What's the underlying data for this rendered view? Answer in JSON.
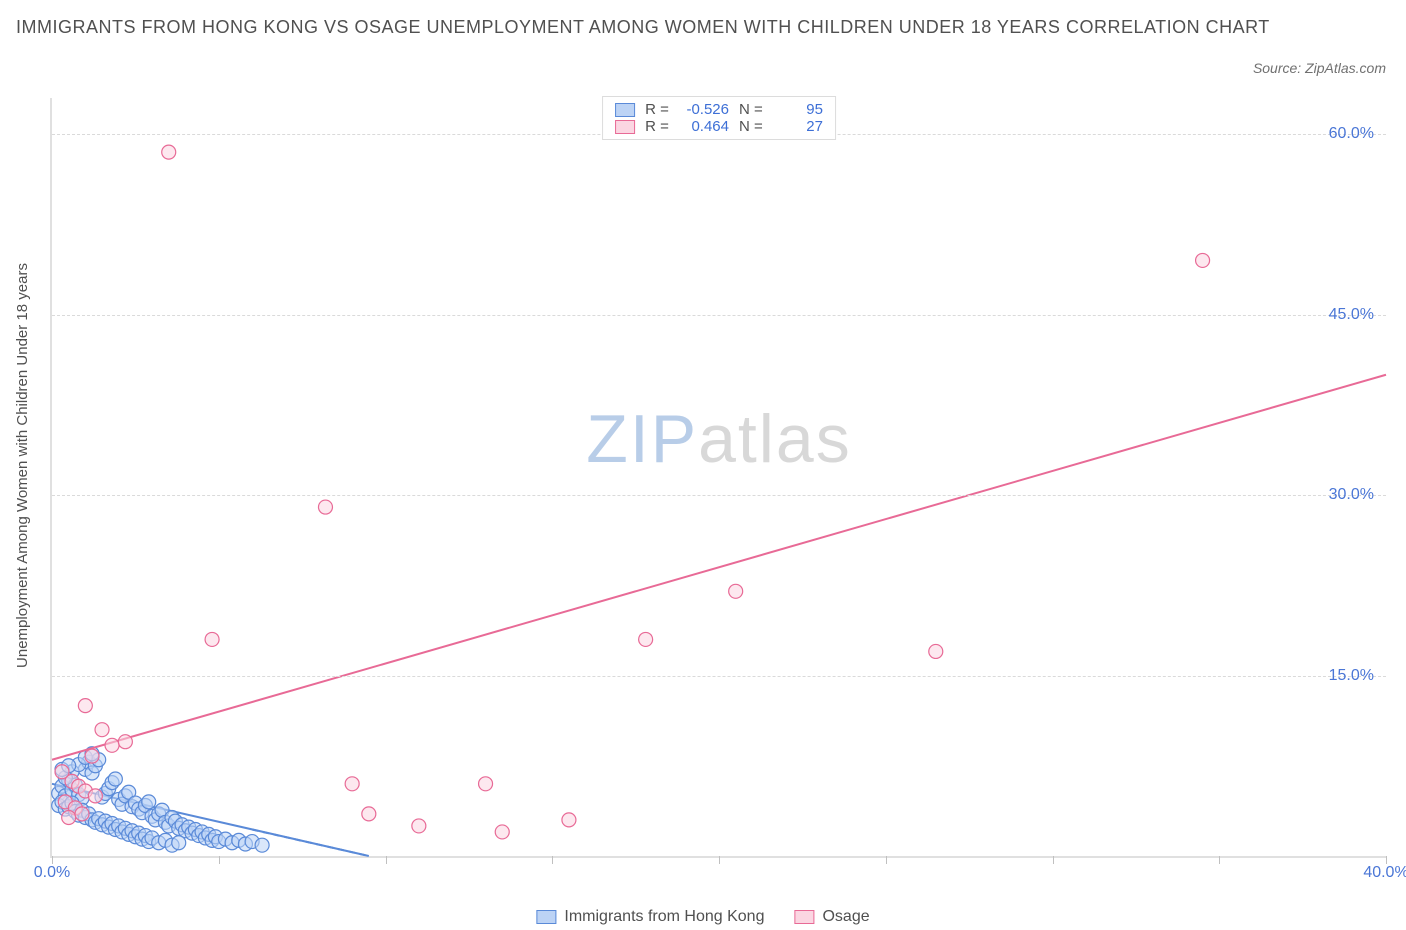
{
  "title": "IMMIGRANTS FROM HONG KONG VS OSAGE UNEMPLOYMENT AMONG WOMEN WITH CHILDREN UNDER 18 YEARS CORRELATION CHART",
  "source": "Source: ZipAtlas.com",
  "ylabel": "Unemployment Among Women with Children Under 18 years",
  "watermark_a": "ZIP",
  "watermark_b": "atlas",
  "chart": {
    "type": "scatter",
    "background_color": "#ffffff",
    "grid_color": "#dadada",
    "axis_color": "#e0e0e0",
    "tick_label_color": "#4a76d6",
    "xlim": [
      0,
      40
    ],
    "ylim": [
      0,
      63
    ],
    "ytick_step": 15,
    "xticks": [
      0,
      5,
      10,
      15,
      20,
      25,
      30,
      35,
      40
    ],
    "yticks": [
      15,
      30,
      45,
      60
    ],
    "xtick_labels": {
      "0": "0.0%",
      "40": "40.0%"
    },
    "ytick_labels": {
      "15": "15.0%",
      "30": "30.0%",
      "45": "45.0%",
      "60": "60.0%"
    },
    "marker_radius": 7,
    "marker_stroke_width": 1.2,
    "line_width": 2
  },
  "series": [
    {
      "id": "hk",
      "label": "Immigrants from Hong Kong",
      "color_fill": "#bcd3f5",
      "color_stroke": "#5a8ad8",
      "R": "-0.526",
      "N": "95",
      "trend": {
        "x1": 0,
        "y1": 6.0,
        "x2": 9.5,
        "y2": 0.0,
        "dash": false
      },
      "trend_ext": {
        "x1": 0,
        "y1": 6.0,
        "x2": 9.5,
        "y2": 0.0,
        "dash": true
      },
      "points": [
        [
          0.2,
          5.2
        ],
        [
          0.3,
          5.8
        ],
        [
          0.4,
          5.0
        ],
        [
          0.5,
          6.3
        ],
        [
          0.6,
          5.5
        ],
        [
          0.7,
          5.9
        ],
        [
          0.8,
          5.1
        ],
        [
          0.9,
          4.8
        ],
        [
          1.0,
          7.2
        ],
        [
          1.1,
          7.8
        ],
        [
          1.2,
          6.9
        ],
        [
          1.3,
          7.5
        ],
        [
          1.4,
          8.0
        ],
        [
          1.5,
          4.9
        ],
        [
          1.6,
          5.2
        ],
        [
          1.7,
          5.6
        ],
        [
          1.8,
          6.1
        ],
        [
          1.9,
          6.4
        ],
        [
          2.0,
          4.7
        ],
        [
          2.1,
          4.3
        ],
        [
          2.2,
          5.0
        ],
        [
          2.3,
          5.3
        ],
        [
          2.4,
          4.1
        ],
        [
          2.5,
          4.4
        ],
        [
          2.6,
          3.9
        ],
        [
          2.7,
          3.6
        ],
        [
          2.8,
          4.2
        ],
        [
          2.9,
          4.5
        ],
        [
          3.0,
          3.3
        ],
        [
          3.1,
          3.0
        ],
        [
          3.2,
          3.5
        ],
        [
          3.3,
          3.8
        ],
        [
          3.4,
          2.8
        ],
        [
          3.5,
          2.5
        ],
        [
          3.6,
          3.2
        ],
        [
          3.7,
          2.9
        ],
        [
          3.8,
          2.3
        ],
        [
          3.9,
          2.6
        ],
        [
          4.0,
          2.1
        ],
        [
          4.1,
          2.4
        ],
        [
          4.2,
          1.9
        ],
        [
          4.3,
          2.2
        ],
        [
          4.4,
          1.7
        ],
        [
          4.5,
          2.0
        ],
        [
          4.6,
          1.5
        ],
        [
          4.7,
          1.8
        ],
        [
          4.8,
          1.3
        ],
        [
          4.9,
          1.6
        ],
        [
          5.0,
          1.2
        ],
        [
          5.2,
          1.4
        ],
        [
          5.4,
          1.1
        ],
        [
          5.6,
          1.3
        ],
        [
          5.8,
          1.0
        ],
        [
          6.0,
          1.2
        ],
        [
          6.3,
          0.9
        ],
        [
          0.6,
          7.0
        ],
        [
          0.8,
          7.6
        ],
        [
          1.0,
          8.2
        ],
        [
          1.2,
          8.5
        ],
        [
          0.4,
          6.5
        ],
        [
          0.3,
          7.2
        ],
        [
          0.5,
          7.5
        ],
        [
          0.2,
          4.2
        ],
        [
          0.3,
          4.5
        ],
        [
          0.4,
          3.9
        ],
        [
          0.5,
          4.1
        ],
        [
          0.6,
          4.4
        ],
        [
          0.7,
          3.7
        ],
        [
          0.8,
          3.4
        ],
        [
          0.9,
          3.8
        ],
        [
          1.0,
          3.2
        ],
        [
          1.1,
          3.5
        ],
        [
          1.2,
          3.0
        ],
        [
          1.3,
          2.8
        ],
        [
          1.4,
          3.1
        ],
        [
          1.5,
          2.6
        ],
        [
          1.6,
          2.9
        ],
        [
          1.7,
          2.4
        ],
        [
          1.8,
          2.7
        ],
        [
          1.9,
          2.2
        ],
        [
          2.0,
          2.5
        ],
        [
          2.1,
          2.0
        ],
        [
          2.2,
          2.3
        ],
        [
          2.3,
          1.8
        ],
        [
          2.4,
          2.1
        ],
        [
          2.5,
          1.6
        ],
        [
          2.6,
          1.9
        ],
        [
          2.7,
          1.4
        ],
        [
          2.8,
          1.7
        ],
        [
          2.9,
          1.2
        ],
        [
          3.0,
          1.5
        ],
        [
          3.2,
          1.1
        ],
        [
          3.4,
          1.3
        ],
        [
          3.6,
          0.9
        ],
        [
          3.8,
          1.1
        ]
      ]
    },
    {
      "id": "osage",
      "label": "Osage",
      "color_fill": "#fbd6e2",
      "color_stroke": "#e86a96",
      "R": "0.464",
      "N": "27",
      "trend": {
        "x1": 0,
        "y1": 8.0,
        "x2": 40,
        "y2": 40.0,
        "dash": false
      },
      "points": [
        [
          3.5,
          58.5
        ],
        [
          34.5,
          49.5
        ],
        [
          8.2,
          29.0
        ],
        [
          20.5,
          22.0
        ],
        [
          17.8,
          18.0
        ],
        [
          26.5,
          17.0
        ],
        [
          4.8,
          18.0
        ],
        [
          1.0,
          12.5
        ],
        [
          1.5,
          10.5
        ],
        [
          1.8,
          9.2
        ],
        [
          2.2,
          9.5
        ],
        [
          1.2,
          8.3
        ],
        [
          0.6,
          6.2
        ],
        [
          0.8,
          5.8
        ],
        [
          1.0,
          5.4
        ],
        [
          1.3,
          5.0
        ],
        [
          0.4,
          4.5
        ],
        [
          0.7,
          4.0
        ],
        [
          0.5,
          3.2
        ],
        [
          0.9,
          3.5
        ],
        [
          9.0,
          6.0
        ],
        [
          9.5,
          3.5
        ],
        [
          11.0,
          2.5
        ],
        [
          13.0,
          6.0
        ],
        [
          13.5,
          2.0
        ],
        [
          15.5,
          3.0
        ],
        [
          0.3,
          7.0
        ]
      ]
    }
  ],
  "legend_top": {
    "R_label": "R =",
    "N_label": "N ="
  }
}
